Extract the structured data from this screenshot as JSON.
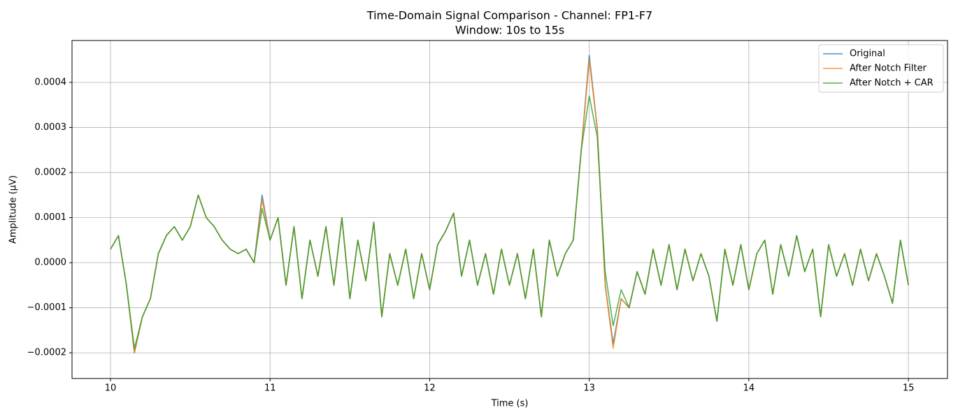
{
  "chart_data": {
    "type": "line",
    "title": "Time-Domain Signal Comparison - Channel: FP1-F7",
    "subtitle": "Window: 10s to 15s",
    "x_label": "Time (s)",
    "y_label": "Amplitude (µV)",
    "xlim": [
      9.759,
      15.245
    ],
    "ylim": [
      -0.000257,
      0.000493
    ],
    "xticks": [
      10,
      11,
      12,
      13,
      14,
      15
    ],
    "yticks": [
      {
        "value": -0.0002,
        "label": "−0.0002"
      },
      {
        "value": -0.0001,
        "label": "−0.0001"
      },
      {
        "value": 0,
        "label": "0.0000"
      },
      0.0001,
      0.0002,
      0.0003,
      0.0004
    ],
    "grid": true,
    "legend": "upper right",
    "x": [
      10.0,
      10.05,
      10.1,
      10.15,
      10.2,
      10.25,
      10.3,
      10.35,
      10.4,
      10.45,
      10.5,
      10.55,
      10.6,
      10.65,
      10.7,
      10.75,
      10.8,
      10.85,
      10.9,
      10.95,
      11.0,
      11.05,
      11.1,
      11.15,
      11.2,
      11.25,
      11.3,
      11.35,
      11.4,
      11.45,
      11.5,
      11.55,
      11.6,
      11.65,
      11.7,
      11.75,
      11.8,
      11.85,
      11.9,
      11.95,
      12.0,
      12.05,
      12.1,
      12.15,
      12.2,
      12.25,
      12.3,
      12.35,
      12.4,
      12.45,
      12.5,
      12.55,
      12.6,
      12.65,
      12.7,
      12.75,
      12.8,
      12.85,
      12.9,
      12.95,
      13.0,
      13.05,
      13.1,
      13.15,
      13.2,
      13.25,
      13.3,
      13.35,
      13.4,
      13.45,
      13.5,
      13.55,
      13.6,
      13.65,
      13.7,
      13.75,
      13.8,
      13.85,
      13.9,
      13.95,
      14.0,
      14.05,
      14.1,
      14.15,
      14.2,
      14.25,
      14.3,
      14.35,
      14.4,
      14.45,
      14.5,
      14.55,
      14.6,
      14.65,
      14.7,
      14.75,
      14.8,
      14.85,
      14.9,
      14.95,
      15.0
    ],
    "series": [
      {
        "name": "Original",
        "color": "#1f77b4",
        "values": [
          3e-05,
          6e-05,
          -5e-05,
          -0.0002,
          -0.00012,
          -8e-05,
          2e-05,
          6e-05,
          8e-05,
          5e-05,
          8e-05,
          0.00015,
          0.0001,
          8e-05,
          5e-05,
          3e-05,
          2e-05,
          3e-05,
          0,
          0.00015,
          5e-05,
          0.0001,
          -5e-05,
          8e-05,
          -8e-05,
          5e-05,
          -3e-05,
          8e-05,
          -5e-05,
          0.0001,
          -8e-05,
          5e-05,
          -4e-05,
          9e-05,
          -0.00012,
          2e-05,
          -5e-05,
          3e-05,
          -8e-05,
          2e-05,
          -6e-05,
          4e-05,
          7e-05,
          0.00011,
          -3e-05,
          5e-05,
          -5e-05,
          2e-05,
          -7e-05,
          3e-05,
          -5e-05,
          2e-05,
          -8e-05,
          3e-05,
          -0.00012,
          5e-05,
          -3e-05,
          2e-05,
          5e-05,
          0.00025,
          0.00046,
          0.0003,
          -5e-05,
          -0.00018,
          -8e-05,
          -0.0001,
          -2e-05,
          -7e-05,
          3e-05,
          -5e-05,
          4e-05,
          -6e-05,
          3e-05,
          -4e-05,
          2e-05,
          -3e-05,
          -0.00013,
          3e-05,
          -5e-05,
          4e-05,
          -6e-05,
          2e-05,
          5e-05,
          -7e-05,
          4e-05,
          -3e-05,
          6e-05,
          -2e-05,
          3e-05,
          -0.00012,
          4e-05,
          -3e-05,
          2e-05,
          -5e-05,
          3e-05,
          -4e-05,
          2e-05,
          -3e-05,
          -9e-05,
          5e-05,
          -5e-05
        ]
      },
      {
        "name": "After Notch Filter",
        "color": "#ff7f0e",
        "values": [
          3e-05,
          6e-05,
          -5e-05,
          -0.0002,
          -0.00012,
          -8e-05,
          2e-05,
          6e-05,
          8e-05,
          5e-05,
          8e-05,
          0.00015,
          0.0001,
          8e-05,
          5e-05,
          3e-05,
          2e-05,
          3e-05,
          0,
          0.00014,
          5e-05,
          0.0001,
          -5e-05,
          8e-05,
          -8e-05,
          5e-05,
          -3e-05,
          8e-05,
          -5e-05,
          0.0001,
          -8e-05,
          5e-05,
          -4e-05,
          9e-05,
          -0.00012,
          2e-05,
          -5e-05,
          3e-05,
          -8e-05,
          2e-05,
          -6e-05,
          4e-05,
          7e-05,
          0.00011,
          -3e-05,
          5e-05,
          -5e-05,
          2e-05,
          -7e-05,
          3e-05,
          -5e-05,
          2e-05,
          -8e-05,
          3e-05,
          -0.00012,
          5e-05,
          -3e-05,
          2e-05,
          5e-05,
          0.00025,
          0.00045,
          0.0003,
          -5e-05,
          -0.00019,
          -8e-05,
          -0.0001,
          -2e-05,
          -7e-05,
          3e-05,
          -5e-05,
          4e-05,
          -6e-05,
          3e-05,
          -4e-05,
          2e-05,
          -3e-05,
          -0.00013,
          3e-05,
          -5e-05,
          4e-05,
          -6e-05,
          2e-05,
          5e-05,
          -7e-05,
          4e-05,
          -3e-05,
          6e-05,
          -2e-05,
          3e-05,
          -0.00012,
          4e-05,
          -3e-05,
          2e-05,
          -5e-05,
          3e-05,
          -4e-05,
          2e-05,
          -3e-05,
          -9e-05,
          5e-05,
          -5e-05
        ]
      },
      {
        "name": "After Notch + CAR",
        "color": "#2ca02c",
        "values": [
          3e-05,
          6e-05,
          -5e-05,
          -0.00019,
          -0.00012,
          -8e-05,
          2e-05,
          6e-05,
          8e-05,
          5e-05,
          8e-05,
          0.00015,
          0.0001,
          8e-05,
          5e-05,
          3e-05,
          2e-05,
          3e-05,
          0,
          0.00012,
          5e-05,
          0.0001,
          -5e-05,
          8e-05,
          -8e-05,
          5e-05,
          -3e-05,
          8e-05,
          -5e-05,
          0.0001,
          -8e-05,
          5e-05,
          -4e-05,
          9e-05,
          -0.00012,
          2e-05,
          -5e-05,
          3e-05,
          -8e-05,
          2e-05,
          -6e-05,
          4e-05,
          7e-05,
          0.00011,
          -3e-05,
          5e-05,
          -5e-05,
          2e-05,
          -7e-05,
          3e-05,
          -5e-05,
          2e-05,
          -8e-05,
          3e-05,
          -0.00012,
          5e-05,
          -3e-05,
          2e-05,
          5e-05,
          0.00025,
          0.00037,
          0.00028,
          -2e-05,
          -0.00014,
          -6e-05,
          -0.0001,
          -2e-05,
          -7e-05,
          3e-05,
          -5e-05,
          4e-05,
          -6e-05,
          3e-05,
          -4e-05,
          2e-05,
          -3e-05,
          -0.00013,
          3e-05,
          -5e-05,
          4e-05,
          -6e-05,
          2e-05,
          5e-05,
          -7e-05,
          4e-05,
          -3e-05,
          6e-05,
          -2e-05,
          3e-05,
          -0.00012,
          4e-05,
          -3e-05,
          2e-05,
          -5e-05,
          3e-05,
          -4e-05,
          2e-05,
          -3e-05,
          -9e-05,
          5e-05,
          -5e-05
        ]
      }
    ]
  }
}
